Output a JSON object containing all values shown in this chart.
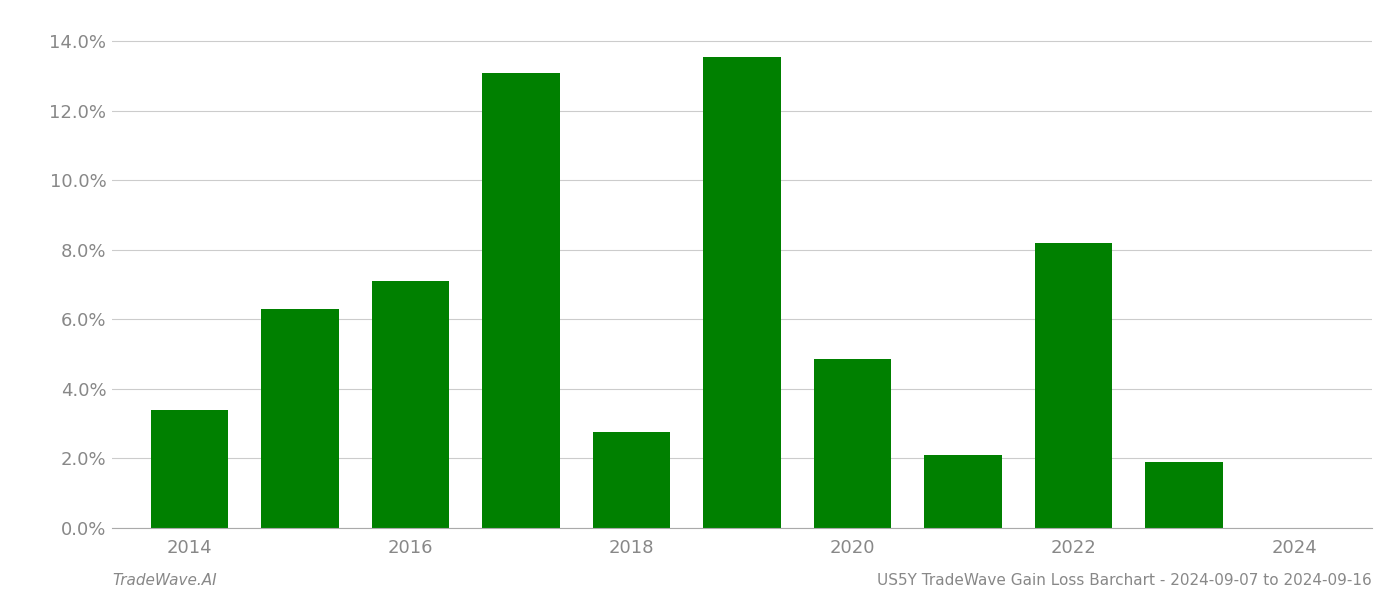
{
  "years": [
    2014,
    2015,
    2016,
    2017,
    2018,
    2019,
    2020,
    2021,
    2022,
    2023,
    2024
  ],
  "values": [
    0.034,
    0.063,
    0.071,
    0.131,
    0.0275,
    0.1355,
    0.0485,
    0.021,
    0.082,
    0.019,
    0.0
  ],
  "bar_color": "#008000",
  "title": "US5Y TradeWave Gain Loss Barchart - 2024-09-07 to 2024-09-16",
  "watermark": "TradeWave.AI",
  "ylim": [
    0,
    0.145
  ],
  "ytick_step": 0.02,
  "background_color": "#ffffff",
  "grid_color": "#cccccc",
  "bar_width": 0.7,
  "title_fontsize": 11,
  "watermark_fontsize": 11,
  "tick_fontsize": 13,
  "tick_color": "#888888",
  "spine_color": "#aaaaaa",
  "xlim": [
    2013.3,
    2024.7
  ],
  "xticks": [
    2014,
    2016,
    2018,
    2020,
    2022,
    2024
  ]
}
